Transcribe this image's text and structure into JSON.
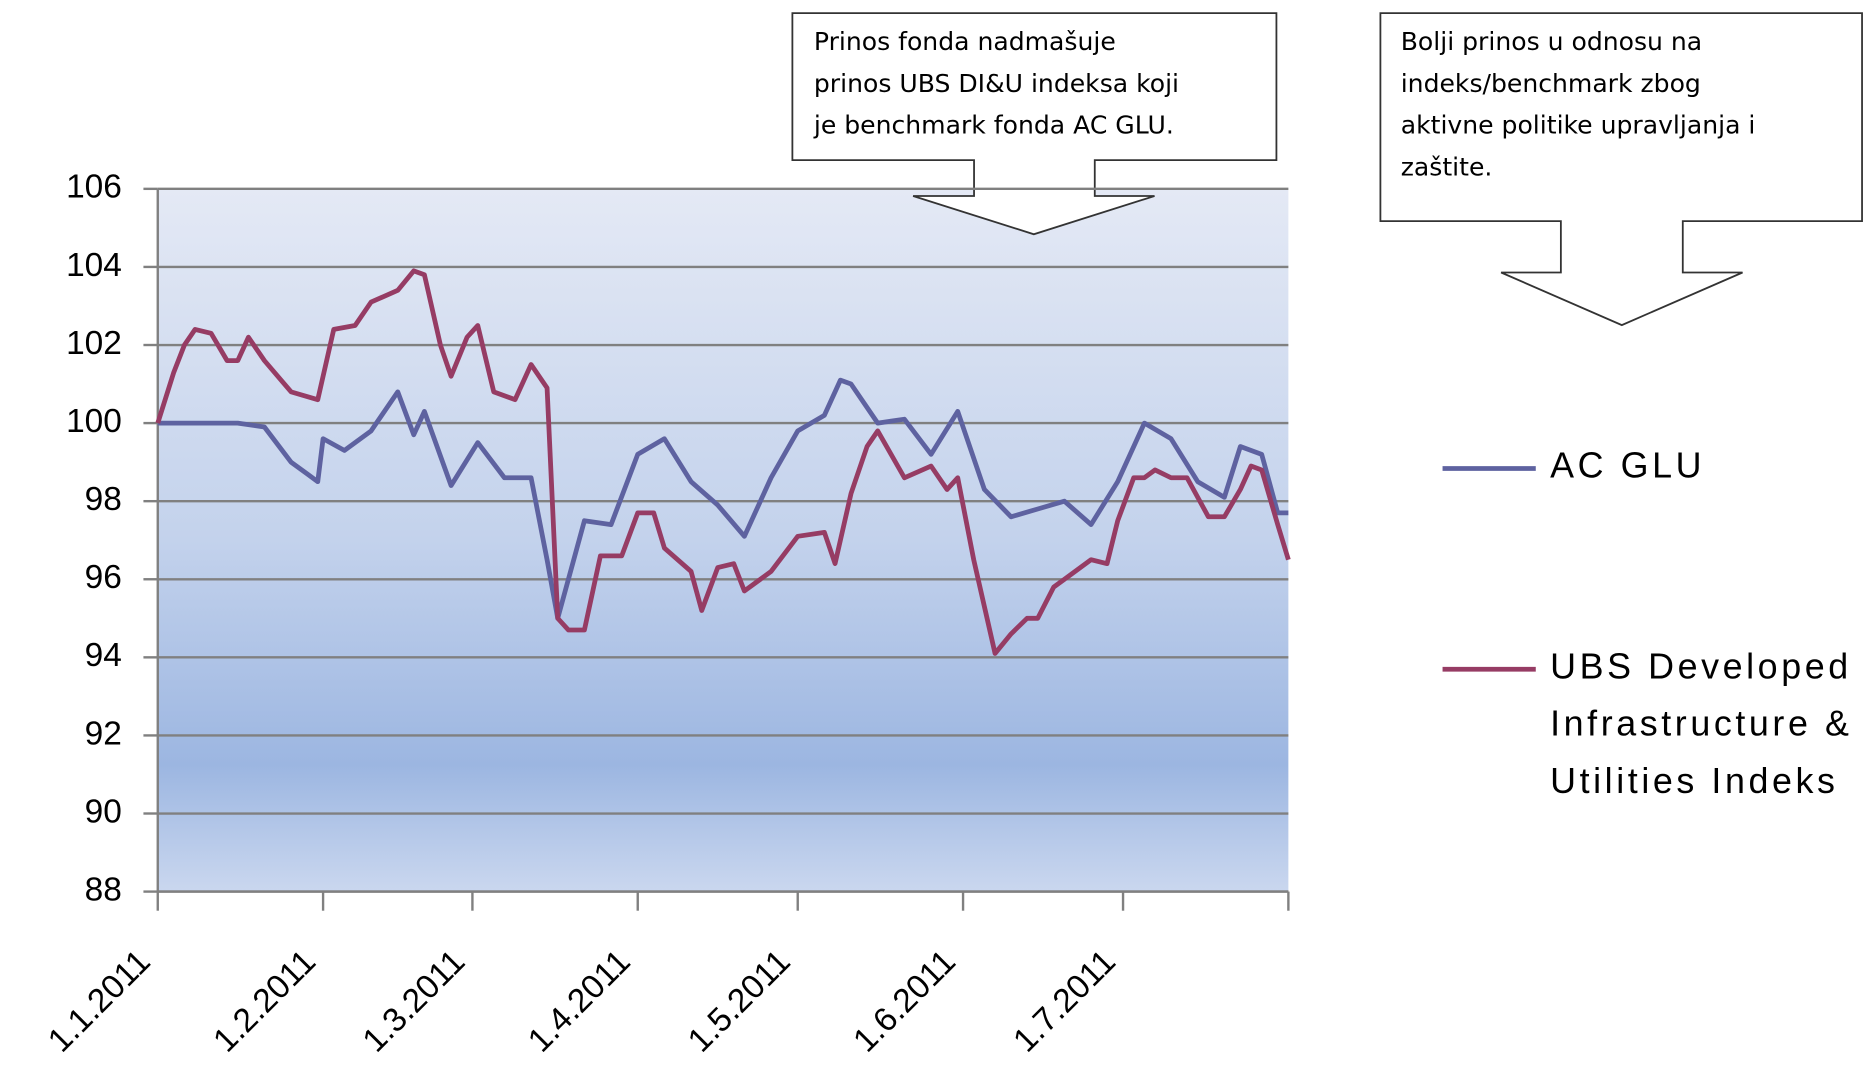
{
  "chart_data": {
    "type": "line",
    "xlim": [
      0,
      212
    ],
    "xticks": [
      {
        "value": 0,
        "label": "1.1.2011"
      },
      {
        "value": 31,
        "label": "1.2.2011"
      },
      {
        "value": 59,
        "label": "1.3.2011"
      },
      {
        "value": 90,
        "label": "1.4.2011"
      },
      {
        "value": 120,
        "label": "1.5.2011"
      },
      {
        "value": 151,
        "label": "1.6.2011"
      },
      {
        "value": 181,
        "label": "1.7.2011"
      }
    ],
    "ylim": [
      88,
      106
    ],
    "yticks": [
      88,
      90,
      92,
      94,
      96,
      98,
      100,
      102,
      104,
      106
    ],
    "grid": true,
    "legend": "right",
    "annotations": [
      {
        "lines": [
          "Prinos fonda nadmašuje",
          "prinos UBS DI&U indeksa koji",
          "je benchmark fonda AC GLU."
        ]
      },
      {
        "lines": [
          "Bolji prinos u odnosu na",
          "indeks/benchmark zbog",
          "aktivne politike upravljanja i",
          "zaštite."
        ]
      }
    ],
    "series": [
      {
        "name": "AC GLU",
        "color": "#5e62a0",
        "x": [
          0,
          5,
          10,
          15,
          20,
          25,
          28,
          30,
          31,
          35,
          40,
          45,
          48,
          50,
          55,
          60,
          65,
          70,
          73,
          75,
          77,
          80,
          85,
          90,
          95,
          100,
          105,
          110,
          115,
          120,
          125,
          128,
          130,
          135,
          140,
          145,
          150,
          155,
          160,
          165,
          170,
          175,
          180,
          185,
          190,
          195,
          200,
          203,
          207,
          210,
          212
        ],
        "values": [
          100,
          100,
          100,
          100,
          99.9,
          99,
          98.7,
          98.5,
          99.6,
          99.3,
          99.8,
          100.8,
          99.7,
          100.3,
          98.4,
          99.5,
          98.6,
          98.6,
          96.5,
          95,
          96,
          97.5,
          97.4,
          99.2,
          99.6,
          98.5,
          97.9,
          97.1,
          98.6,
          99.8,
          100.2,
          101.1,
          101,
          100,
          100.1,
          99.2,
          100.3,
          98.3,
          97.6,
          97.8,
          98,
          97.4,
          98.5,
          100,
          99.6,
          98.5,
          98.1,
          99.4,
          99.2,
          97.7,
          97.7
        ]
      },
      {
        "name": "UBS Developed Infrastructure & Utilities Indeks",
        "color": "#963c64",
        "x": [
          0,
          3,
          5,
          7,
          10,
          13,
          15,
          17,
          20,
          25,
          30,
          33,
          37,
          40,
          45,
          48,
          50,
          53,
          55,
          58,
          60,
          63,
          67,
          70,
          73,
          75,
          77,
          80,
          83,
          87,
          90,
          93,
          95,
          100,
          102,
          105,
          108,
          110,
          115,
          120,
          125,
          127,
          130,
          133,
          135,
          140,
          145,
          148,
          150,
          153,
          155,
          157,
          160,
          163,
          165,
          168,
          170,
          175,
          178,
          180,
          183,
          185,
          187,
          190,
          193,
          197,
          200,
          203,
          205,
          207,
          210,
          212
        ],
        "values": [
          100,
          101.3,
          102,
          102.4,
          102.3,
          101.6,
          101.6,
          102.2,
          101.6,
          100.8,
          100.6,
          102.4,
          102.5,
          103.1,
          103.4,
          103.9,
          103.8,
          102,
          101.2,
          102.2,
          102.5,
          100.8,
          100.6,
          101.5,
          100.9,
          95,
          94.7,
          94.7,
          96.6,
          96.6,
          97.7,
          97.7,
          96.8,
          96.2,
          95.2,
          96.3,
          96.4,
          95.7,
          96.2,
          97.1,
          97.2,
          96.4,
          98.2,
          99.4,
          99.8,
          98.6,
          98.9,
          98.3,
          98.6,
          96.5,
          95.3,
          94.1,
          94.6,
          95,
          95,
          95.8,
          96,
          96.5,
          96.4,
          97.5,
          98.6,
          98.6,
          98.8,
          98.6,
          98.6,
          97.6,
          97.6,
          98.3,
          98.9,
          98.8,
          97.4,
          96.5
        ]
      }
    ]
  }
}
